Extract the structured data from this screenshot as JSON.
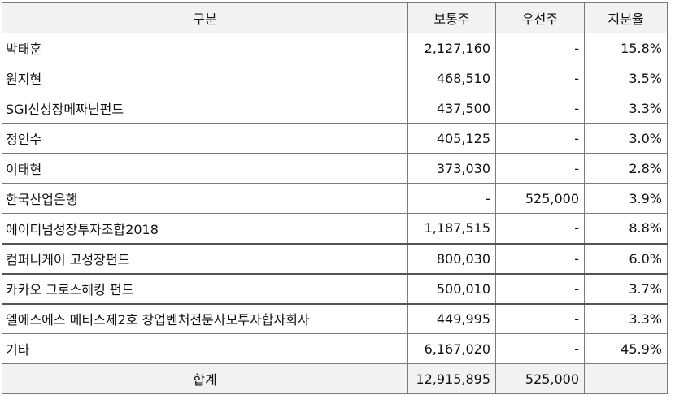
{
  "header": {
    "category": "구분",
    "common": "보통주",
    "preferred": "우선주",
    "ratio": "지분율"
  },
  "rows": [
    {
      "name": "박태훈",
      "common": "2,127,160",
      "preferred": "-",
      "ratio": "15.8%"
    },
    {
      "name": "원지현",
      "common": "468,510",
      "preferred": "-",
      "ratio": "3.5%"
    },
    {
      "name": "SGI신성장메짜닌펀드",
      "common": "437,500",
      "preferred": "-",
      "ratio": "3.3%"
    },
    {
      "name": "정인수",
      "common": "405,125",
      "preferred": "-",
      "ratio": "3.0%"
    },
    {
      "name": "이태현",
      "common": "373,030",
      "preferred": "-",
      "ratio": "2.8%"
    },
    {
      "name": "한국산업은행",
      "common": "-",
      "preferred": "525,000",
      "ratio": "3.9%"
    },
    {
      "name": "에이티넘성장투자조합2018",
      "common": "1,187,515",
      "preferred": "-",
      "ratio": "8.8%"
    },
    {
      "name": "컴퍼니케이 고성장펀드",
      "common": "800,030",
      "preferred": "-",
      "ratio": "6.0%"
    },
    {
      "name": "카카오 그로스해킹 펀드",
      "common": "500,010",
      "preferred": "-",
      "ratio": "3.7%"
    },
    {
      "name": "엘에스에스 메티스제2호 창업벤처전문사모투자합자회사",
      "common": "449,995",
      "preferred": "-",
      "ratio": "3.3%"
    },
    {
      "name": "기타",
      "common": "6,167,020",
      "preferred": "-",
      "ratio": "45.9%"
    }
  ],
  "total": {
    "label": "합계",
    "common": "12,915,895",
    "preferred": "525,000",
    "ratio": ""
  }
}
